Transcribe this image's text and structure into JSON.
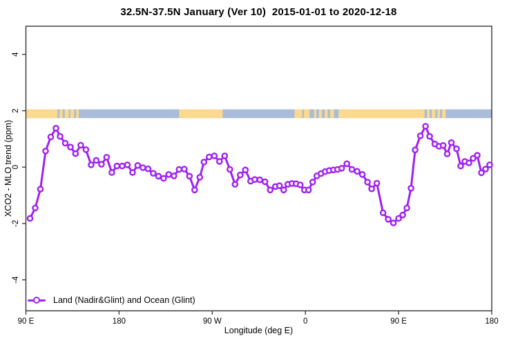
{
  "figure": {
    "title": "32.5N-37.5N January (Ver 10)  2015-01-01 to 2020-12-18",
    "xlabel": "Longitude (deg E)",
    "ylabel": "XCO2 - MLO trend (ppm)",
    "legend_label": "Land (Nadir&Glint) and Ocean (Glint)"
  },
  "colors": {
    "series": "#A020F0",
    "marker_fill": "#ffffff",
    "axis": "#333333",
    "text": "#000000",
    "ocean_band": "#A9BCD9",
    "land_band": "#FBD98E"
  },
  "chart_data": {
    "type": "line",
    "title": "32.5N-37.5N January (Ver 10)  2015-01-01 to 2020-12-18",
    "xlabel": "Longitude (deg E)",
    "ylabel": "XCO2 - MLO trend (ppm)",
    "xlim": [
      90,
      540
    ],
    "ylim": [
      -5.1,
      5.0
    ],
    "grid": false,
    "x_ticks": [
      {
        "value": 90,
        "label": "90 E"
      },
      {
        "value": 180,
        "label": "180"
      },
      {
        "value": 270,
        "label": "90 W"
      },
      {
        "value": 360,
        "label": "0"
      },
      {
        "value": 450,
        "label": "90 E"
      },
      {
        "value": 540,
        "label": "180"
      }
    ],
    "y_ticks": [
      -4,
      -2,
      0,
      2,
      4
    ],
    "legend": {
      "label": "Land (Nadir&Glint) and Ocean (Glint)",
      "position": "bottom-left",
      "frame": false
    },
    "map_strip": {
      "description": "world coastline strip for 32.5N-37.5N drawn at y band",
      "y_range": [
        1.74,
        2.05
      ],
      "ocean_color": "#A9BCD9",
      "land_color": "#FBD98E",
      "land_segments_lon": [
        [
          90,
          120.5
        ],
        [
          122.5,
          125.5
        ],
        [
          127.5,
          131.5
        ],
        [
          133,
          136.5
        ],
        [
          138.5,
          141
        ],
        [
          238,
          280
        ],
        [
          349.5,
          357
        ],
        [
          358.5,
          364
        ],
        [
          368.5,
          370.5
        ],
        [
          373,
          376
        ],
        [
          378.5,
          381.5
        ],
        [
          384,
          387.5
        ],
        [
          392,
          475
        ],
        [
          477.5,
          480
        ],
        [
          482,
          485.5
        ],
        [
          487.5,
          490
        ],
        [
          492,
          495.5
        ]
      ]
    },
    "series": [
      {
        "name": "Land (Nadir&Glint) and Ocean (Glint)",
        "color": "#A020F0",
        "marker": "open-circle",
        "points": [
          [
            94,
            -1.82
          ],
          [
            99,
            -1.45
          ],
          [
            104,
            -0.78
          ],
          [
            109,
            0.57
          ],
          [
            114,
            1.07
          ],
          [
            119,
            1.38
          ],
          [
            123,
            1.09
          ],
          [
            128,
            0.85
          ],
          [
            133,
            0.71
          ],
          [
            138,
            0.48
          ],
          [
            143,
            0.78
          ],
          [
            148,
            0.62
          ],
          [
            153,
            0.08
          ],
          [
            158,
            0.24
          ],
          [
            163,
            0.1
          ],
          [
            168,
            0.35
          ],
          [
            173,
            -0.19
          ],
          [
            178,
            0.04
          ],
          [
            183,
            0.04
          ],
          [
            188,
            0.08
          ],
          [
            193,
            -0.19
          ],
          [
            198,
            0.06
          ],
          [
            203,
            -0.02
          ],
          [
            208,
            -0.06
          ],
          [
            213,
            -0.22
          ],
          [
            218,
            -0.32
          ],
          [
            223,
            -0.4
          ],
          [
            228,
            -0.26
          ],
          [
            233,
            -0.31
          ],
          [
            238,
            -0.08
          ],
          [
            243,
            -0.07
          ],
          [
            248,
            -0.32
          ],
          [
            253,
            -0.81
          ],
          [
            258,
            -0.36
          ],
          [
            262,
            0.18
          ],
          [
            267,
            0.36
          ],
          [
            272,
            0.4
          ],
          [
            277,
            0.2
          ],
          [
            282,
            0.4
          ],
          [
            287,
            -0.08
          ],
          [
            292,
            -0.61
          ],
          [
            297,
            -0.28
          ],
          [
            302,
            -0.1
          ],
          [
            307,
            -0.5
          ],
          [
            311,
            -0.44
          ],
          [
            316,
            -0.45
          ],
          [
            321,
            -0.52
          ],
          [
            326,
            -0.81
          ],
          [
            331,
            -0.69
          ],
          [
            335,
            -0.66
          ],
          [
            339,
            -0.81
          ],
          [
            343,
            -0.61
          ],
          [
            347,
            -0.58
          ],
          [
            351,
            -0.59
          ],
          [
            355,
            -0.63
          ],
          [
            359,
            -0.81
          ],
          [
            363,
            -0.81
          ],
          [
            367,
            -0.53
          ],
          [
            371,
            -0.31
          ],
          [
            375,
            -0.23
          ],
          [
            379,
            -0.16
          ],
          [
            383,
            -0.12
          ],
          [
            387,
            -0.1
          ],
          [
            391,
            -0.08
          ],
          [
            395,
            -0.04
          ],
          [
            400,
            0.12
          ],
          [
            405,
            -0.08
          ],
          [
            410,
            -0.15
          ],
          [
            415,
            -0.26
          ],
          [
            420,
            -0.53
          ],
          [
            424,
            -0.77
          ],
          [
            429,
            -0.57
          ],
          [
            435,
            -1.62
          ],
          [
            440,
            -1.85
          ],
          [
            445,
            -1.98
          ],
          [
            450,
            -1.82
          ],
          [
            454,
            -1.7
          ],
          [
            458,
            -1.45
          ],
          [
            462,
            -0.75
          ],
          [
            466,
            0.61
          ],
          [
            471,
            1.11
          ],
          [
            476,
            1.45
          ],
          [
            480,
            1.09
          ],
          [
            485,
            0.82
          ],
          [
            489,
            0.74
          ],
          [
            493,
            0.77
          ],
          [
            497,
            0.47
          ],
          [
            501,
            0.87
          ],
          [
            506,
            0.65
          ],
          [
            510,
            0.04
          ],
          [
            514,
            0.2
          ],
          [
            518,
            0.15
          ],
          [
            522,
            0.31
          ],
          [
            526,
            0.42
          ],
          [
            530,
            -0.2
          ],
          [
            534,
            -0.07
          ],
          [
            538,
            0.08
          ]
        ]
      }
    ]
  }
}
